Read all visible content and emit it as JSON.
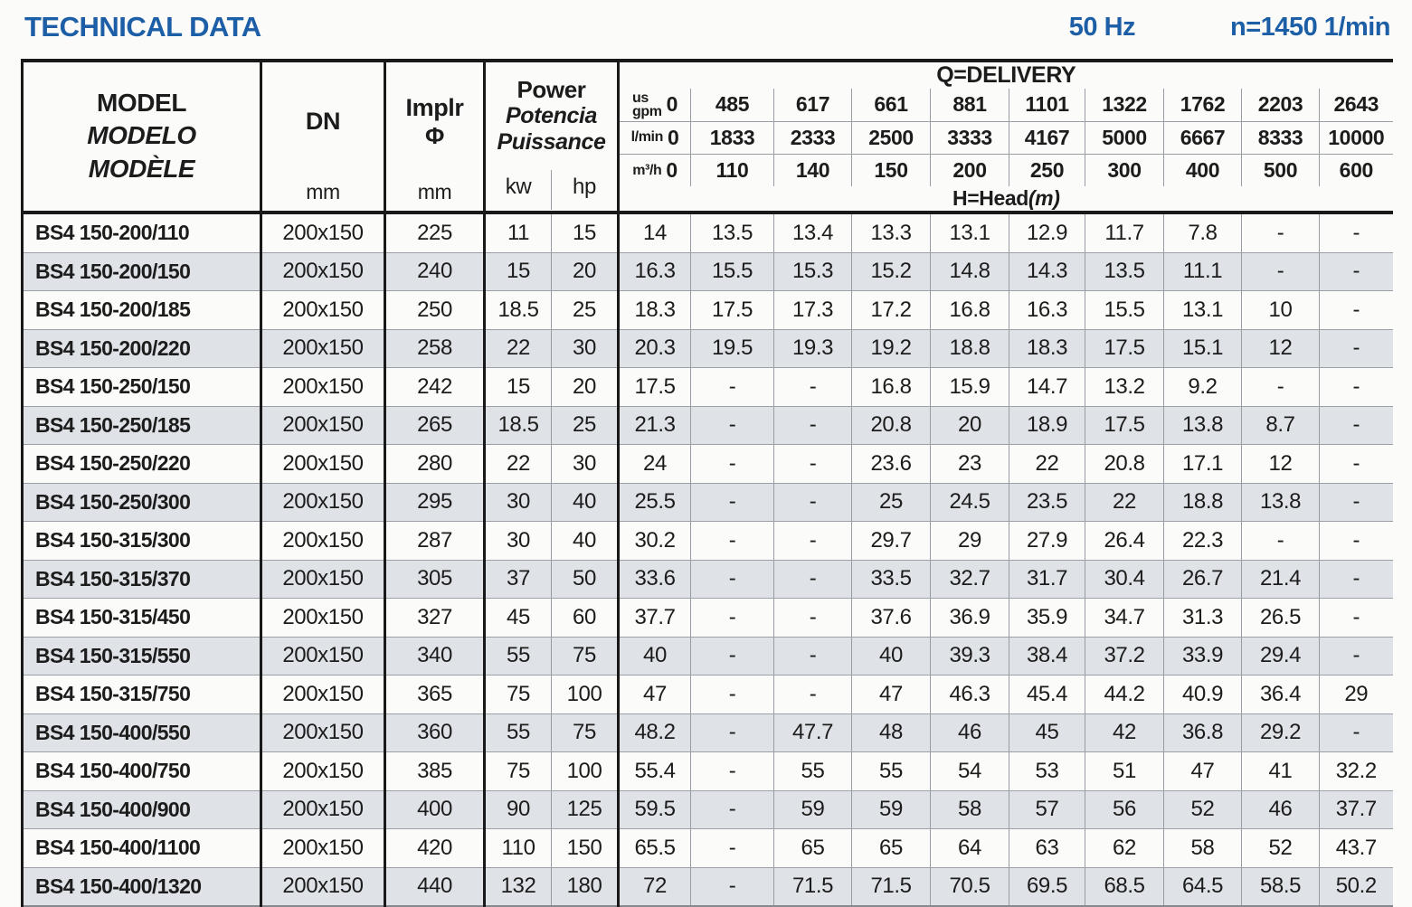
{
  "page": {
    "title": "TECHNICAL DATA",
    "frequency": "50 Hz",
    "speed": "n=1450 1/min"
  },
  "colors": {
    "accent_blue": "#1d5fa7",
    "row_shade": "#dfe3e7",
    "border_dark": "#191919",
    "border_light": "#979da2"
  },
  "header": {
    "model": {
      "line1": "MODEL",
      "line2": "MODELO",
      "line3": "MODÈLE"
    },
    "dn": {
      "label": "DN",
      "unit": "mm"
    },
    "impeller": {
      "label": "Implr",
      "symbol": "Φ",
      "unit": "mm"
    },
    "power": {
      "label_en": "Power",
      "label_es": "Potencia",
      "label_fr": "Puissance",
      "unit_kw": "kw",
      "unit_hp": "hp"
    },
    "delivery": {
      "title": "Q=DELIVERY",
      "flow_rows": [
        {
          "unit_top": "us",
          "unit": "gpm",
          "zero": "0",
          "values": [
            "485",
            "617",
            "661",
            "881",
            "1101",
            "1322",
            "1762",
            "2203",
            "2643"
          ]
        },
        {
          "unit_top": "",
          "unit": "l/min",
          "zero": "0",
          "values": [
            "1833",
            "2333",
            "2500",
            "3333",
            "4167",
            "5000",
            "6667",
            "8333",
            "10000"
          ]
        },
        {
          "unit_top": "",
          "unit": "m³/h",
          "zero": "0",
          "values": [
            "110",
            "140",
            "150",
            "200",
            "250",
            "300",
            "400",
            "500",
            "600"
          ]
        }
      ],
      "head_label": "H=Head",
      "head_unit": "(m)"
    }
  },
  "rows": [
    {
      "model": "BS4 150-200/110",
      "dn": "200x150",
      "impeller": "225",
      "kw": "11",
      "hp": "15",
      "heads": [
        "14",
        "13.5",
        "13.4",
        "13.3",
        "13.1",
        "12.9",
        "11.7",
        "7.8",
        "-",
        "-"
      ]
    },
    {
      "model": "BS4 150-200/150",
      "dn": "200x150",
      "impeller": "240",
      "kw": "15",
      "hp": "20",
      "heads": [
        "16.3",
        "15.5",
        "15.3",
        "15.2",
        "14.8",
        "14.3",
        "13.5",
        "11.1",
        "-",
        "-"
      ]
    },
    {
      "model": "BS4 150-200/185",
      "dn": "200x150",
      "impeller": "250",
      "kw": "18.5",
      "hp": "25",
      "heads": [
        "18.3",
        "17.5",
        "17.3",
        "17.2",
        "16.8",
        "16.3",
        "15.5",
        "13.1",
        "10",
        "-"
      ]
    },
    {
      "model": "BS4 150-200/220",
      "dn": "200x150",
      "impeller": "258",
      "kw": "22",
      "hp": "30",
      "heads": [
        "20.3",
        "19.5",
        "19.3",
        "19.2",
        "18.8",
        "18.3",
        "17.5",
        "15.1",
        "12",
        "-"
      ]
    },
    {
      "model": "BS4 150-250/150",
      "dn": "200x150",
      "impeller": "242",
      "kw": "15",
      "hp": "20",
      "heads": [
        "17.5",
        "-",
        "-",
        "16.8",
        "15.9",
        "14.7",
        "13.2",
        "9.2",
        "-",
        "-"
      ]
    },
    {
      "model": "BS4 150-250/185",
      "dn": "200x150",
      "impeller": "265",
      "kw": "18.5",
      "hp": "25",
      "heads": [
        "21.3",
        "-",
        "-",
        "20.8",
        "20",
        "18.9",
        "17.5",
        "13.8",
        "8.7",
        "-"
      ]
    },
    {
      "model": "BS4 150-250/220",
      "dn": "200x150",
      "impeller": "280",
      "kw": "22",
      "hp": "30",
      "heads": [
        "24",
        "-",
        "-",
        "23.6",
        "23",
        "22",
        "20.8",
        "17.1",
        "12",
        "-"
      ]
    },
    {
      "model": "BS4 150-250/300",
      "dn": "200x150",
      "impeller": "295",
      "kw": "30",
      "hp": "40",
      "heads": [
        "25.5",
        "-",
        "-",
        "25",
        "24.5",
        "23.5",
        "22",
        "18.8",
        "13.8",
        "-"
      ]
    },
    {
      "model": "BS4 150-315/300",
      "dn": "200x150",
      "impeller": "287",
      "kw": "30",
      "hp": "40",
      "heads": [
        "30.2",
        "-",
        "-",
        "29.7",
        "29",
        "27.9",
        "26.4",
        "22.3",
        "-",
        "-"
      ]
    },
    {
      "model": "BS4 150-315/370",
      "dn": "200x150",
      "impeller": "305",
      "kw": "37",
      "hp": "50",
      "heads": [
        "33.6",
        "-",
        "-",
        "33.5",
        "32.7",
        "31.7",
        "30.4",
        "26.7",
        "21.4",
        "-"
      ]
    },
    {
      "model": "BS4 150-315/450",
      "dn": "200x150",
      "impeller": "327",
      "kw": "45",
      "hp": "60",
      "heads": [
        "37.7",
        "-",
        "-",
        "37.6",
        "36.9",
        "35.9",
        "34.7",
        "31.3",
        "26.5",
        "-"
      ]
    },
    {
      "model": "BS4 150-315/550",
      "dn": "200x150",
      "impeller": "340",
      "kw": "55",
      "hp": "75",
      "heads": [
        "40",
        "-",
        "-",
        "40",
        "39.3",
        "38.4",
        "37.2",
        "33.9",
        "29.4",
        "-"
      ]
    },
    {
      "model": "BS4 150-315/750",
      "dn": "200x150",
      "impeller": "365",
      "kw": "75",
      "hp": "100",
      "heads": [
        "47",
        "-",
        "-",
        "47",
        "46.3",
        "45.4",
        "44.2",
        "40.9",
        "36.4",
        "29"
      ]
    },
    {
      "model": "BS4 150-400/550",
      "dn": "200x150",
      "impeller": "360",
      "kw": "55",
      "hp": "75",
      "heads": [
        "48.2",
        "-",
        "47.7",
        "48",
        "46",
        "45",
        "42",
        "36.8",
        "29.2",
        "-"
      ]
    },
    {
      "model": "BS4 150-400/750",
      "dn": "200x150",
      "impeller": "385",
      "kw": "75",
      "hp": "100",
      "heads": [
        "55.4",
        "-",
        "55",
        "55",
        "54",
        "53",
        "51",
        "47",
        "41",
        "32.2"
      ]
    },
    {
      "model": "BS4 150-400/900",
      "dn": "200x150",
      "impeller": "400",
      "kw": "90",
      "hp": "125",
      "heads": [
        "59.5",
        "-",
        "59",
        "59",
        "58",
        "57",
        "56",
        "52",
        "46",
        "37.7"
      ]
    },
    {
      "model": "BS4 150-400/1100",
      "dn": "200x150",
      "impeller": "420",
      "kw": "110",
      "hp": "150",
      "heads": [
        "65.5",
        "-",
        "65",
        "65",
        "64",
        "63",
        "62",
        "58",
        "52",
        "43.7"
      ]
    },
    {
      "model": "BS4 150-400/1320",
      "dn": "200x150",
      "impeller": "440",
      "kw": "132",
      "hp": "180",
      "heads": [
        "72",
        "-",
        "71.5",
        "71.5",
        "70.5",
        "69.5",
        "68.5",
        "64.5",
        "58.5",
        "50.2"
      ]
    }
  ]
}
